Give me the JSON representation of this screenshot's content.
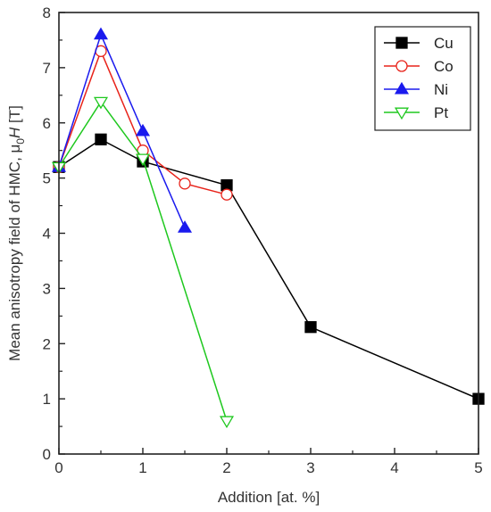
{
  "chart_data": {
    "type": "line",
    "xlabel": "Addition [at. %]",
    "ylabel_prefix": "Mean anisotropy field of HMC, μ",
    "ylabel_subscript": "0",
    "ylabel_italic": "H",
    "ylabel_suffix": " [T]",
    "xlim": [
      0,
      5
    ],
    "ylim": [
      0,
      8
    ],
    "xticks": [
      0,
      1,
      2,
      3,
      4,
      5
    ],
    "yticks": [
      0,
      1,
      2,
      3,
      4,
      5,
      6,
      7,
      8
    ],
    "grid": false,
    "legend_position": "top-right",
    "series": [
      {
        "name": "Cu",
        "color": "#000000",
        "marker": "square",
        "filled": true,
        "x": [
          0,
          0.5,
          1,
          2,
          3,
          5
        ],
        "y": [
          5.2,
          5.7,
          5.3,
          4.87,
          2.3,
          1.0
        ]
      },
      {
        "name": "Co",
        "color": "#e8231a",
        "marker": "circle",
        "filled": false,
        "x": [
          0,
          0.5,
          1,
          1.5,
          2
        ],
        "y": [
          5.2,
          7.3,
          5.5,
          4.9,
          4.7
        ]
      },
      {
        "name": "Ni",
        "color": "#1a1aee",
        "marker": "triangle-up",
        "filled": true,
        "x": [
          0,
          0.5,
          1,
          1.5
        ],
        "y": [
          5.2,
          7.6,
          5.85,
          4.1
        ]
      },
      {
        "name": "Pt",
        "color": "#1ec81e",
        "marker": "triangle-down",
        "filled": false,
        "x": [
          0,
          0.5,
          1,
          2
        ],
        "y": [
          5.2,
          6.38,
          5.35,
          0.6
        ]
      }
    ]
  }
}
